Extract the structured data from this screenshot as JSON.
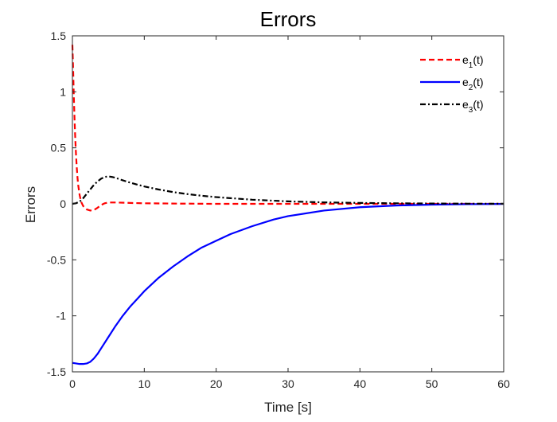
{
  "chart_data": {
    "type": "line",
    "title": "Errors",
    "xlabel": "Time [s]",
    "ylabel": "Errors",
    "xlim": [
      0,
      60
    ],
    "ylim": [
      -1.5,
      1.5
    ],
    "xticks": [
      0,
      10,
      20,
      30,
      40,
      50,
      60
    ],
    "yticks": [
      -1.5,
      -1,
      -0.5,
      0,
      0.5,
      1,
      1.5
    ],
    "xtick_labels": [
      "0",
      "10",
      "20",
      "30",
      "40",
      "50",
      "60"
    ],
    "ytick_labels": [
      "-1.5",
      "-1",
      "-0.5",
      "0",
      "0.5",
      "1",
      "1.5"
    ],
    "grid": false,
    "legend_position": "top-right",
    "series": [
      {
        "name": "e1(t)",
        "legend": {
          "base": "e",
          "sub": "1",
          "suffix": "(t)"
        },
        "color": "#ff0000",
        "dash": "dashed",
        "x": [
          0,
          0.1,
          0.2,
          0.3,
          0.4,
          0.5,
          0.6,
          0.7,
          0.8,
          1.0,
          1.2,
          1.5,
          2.0,
          2.5,
          3.0,
          3.5,
          4.0,
          4.5,
          5.0,
          6.0,
          8.0,
          10,
          15,
          20,
          30,
          40,
          50,
          60
        ],
        "y": [
          1.42,
          1.2,
          0.95,
          0.75,
          0.58,
          0.44,
          0.33,
          0.24,
          0.17,
          0.08,
          0.02,
          -0.02,
          -0.05,
          -0.06,
          -0.055,
          -0.035,
          -0.01,
          0.005,
          0.012,
          0.012,
          0.008,
          0.005,
          0.002,
          0.0,
          0.0,
          0.0,
          0.0,
          0.0
        ]
      },
      {
        "name": "e2(t)",
        "legend": {
          "base": "e",
          "sub": "2",
          "suffix": "(t)"
        },
        "color": "#0000ff",
        "dash": "solid",
        "x": [
          0,
          0.5,
          1.0,
          1.5,
          2.0,
          2.5,
          3.0,
          3.5,
          4.0,
          5,
          6,
          7,
          8,
          9,
          10,
          12,
          14,
          16,
          18,
          20,
          22,
          25,
          28,
          30,
          35,
          40,
          45,
          50,
          55,
          60
        ],
        "y": [
          -1.42,
          -1.425,
          -1.43,
          -1.43,
          -1.425,
          -1.41,
          -1.38,
          -1.34,
          -1.29,
          -1.19,
          -1.09,
          -1.0,
          -0.92,
          -0.85,
          -0.78,
          -0.66,
          -0.56,
          -0.47,
          -0.39,
          -0.33,
          -0.27,
          -0.2,
          -0.14,
          -0.11,
          -0.06,
          -0.03,
          -0.015,
          -0.007,
          -0.003,
          -0.001
        ]
      },
      {
        "name": "e3(t)",
        "legend": {
          "base": "e",
          "sub": "3",
          "suffix": "(t)"
        },
        "color": "#000000",
        "dash": "dashdot",
        "x": [
          0,
          0.5,
          1.0,
          1.5,
          2.0,
          2.5,
          3.0,
          3.5,
          4.0,
          4.5,
          5.0,
          5.5,
          6,
          7,
          8,
          9,
          10,
          12,
          14,
          16,
          18,
          20,
          25,
          30,
          35,
          40,
          45,
          50,
          55,
          60
        ],
        "y": [
          0.0,
          0.005,
          0.02,
          0.05,
          0.09,
          0.13,
          0.17,
          0.2,
          0.225,
          0.24,
          0.245,
          0.24,
          0.232,
          0.21,
          0.19,
          0.172,
          0.155,
          0.128,
          0.105,
          0.087,
          0.072,
          0.06,
          0.037,
          0.022,
          0.013,
          0.008,
          0.005,
          0.003,
          0.0015,
          0.001
        ]
      }
    ]
  }
}
